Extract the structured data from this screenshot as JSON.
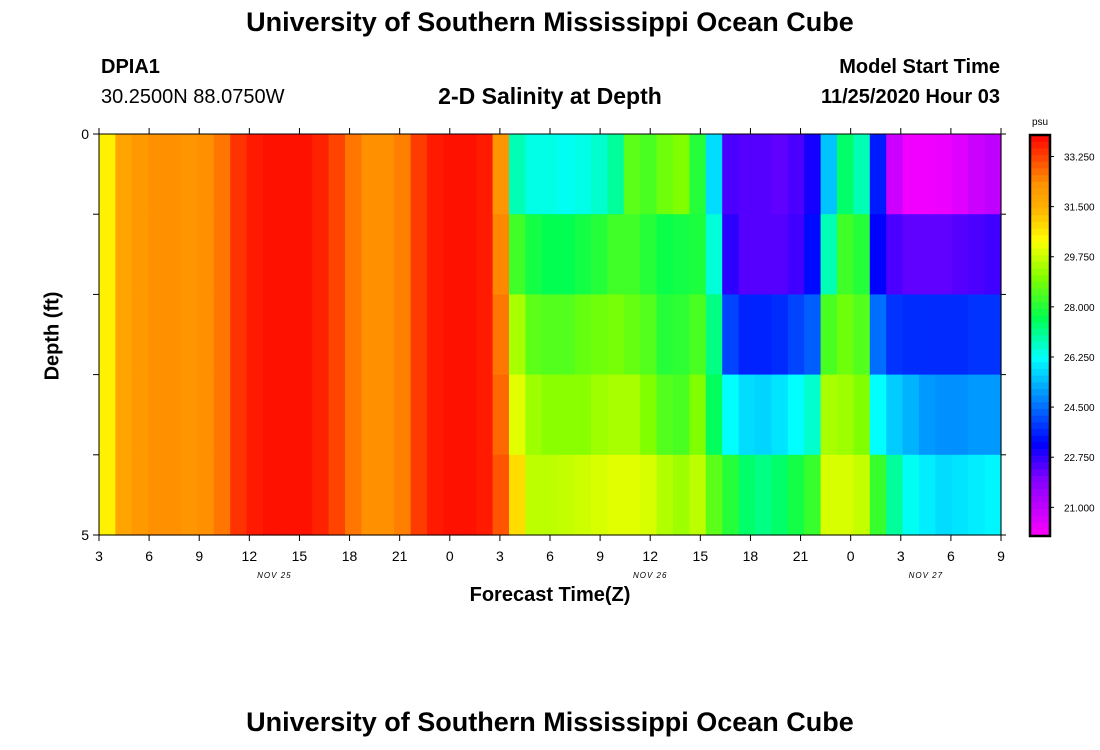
{
  "header": {
    "title": "University of Southern Mississippi Ocean Cube",
    "station_id": "DPIA1",
    "station_coords": "30.2500N 88.0750W",
    "subtitle": "2-D Salinity at Depth",
    "model_start_label": "Model Start Time",
    "model_start_value": "11/25/2020 Hour 03"
  },
  "footer": {
    "title": "University of Southern Mississippi Ocean Cube"
  },
  "chart_data": {
    "type": "heatmap",
    "title": "2-D Salinity at Depth",
    "xlabel": "Forecast Time(Z)",
    "ylabel": "Depth (ft)",
    "x_hours_range": [
      0,
      54
    ],
    "xticks": [
      {
        "h": 0,
        "label": "3"
      },
      {
        "h": 3,
        "label": "6"
      },
      {
        "h": 6,
        "label": "9"
      },
      {
        "h": 9,
        "label": "12"
      },
      {
        "h": 12,
        "label": "15"
      },
      {
        "h": 15,
        "label": "18"
      },
      {
        "h": 18,
        "label": "21"
      },
      {
        "h": 21,
        "label": "0"
      },
      {
        "h": 24,
        "label": "3"
      },
      {
        "h": 27,
        "label": "6"
      },
      {
        "h": 30,
        "label": "9"
      },
      {
        "h": 33,
        "label": "12"
      },
      {
        "h": 36,
        "label": "15"
      },
      {
        "h": 39,
        "label": "18"
      },
      {
        "h": 42,
        "label": "21"
      },
      {
        "h": 45,
        "label": "0"
      },
      {
        "h": 48,
        "label": "3"
      },
      {
        "h": 51,
        "label": "6"
      },
      {
        "h": 54,
        "label": "9"
      }
    ],
    "date_labels": [
      {
        "h": 10.5,
        "label": "NOV 25"
      },
      {
        "h": 33,
        "label": "NOV 26"
      },
      {
        "h": 49.5,
        "label": "NOV 27"
      }
    ],
    "ylim": [
      0,
      5
    ],
    "yticks": [
      {
        "v": 0,
        "label": "0"
      },
      {
        "v": 1,
        "label": ""
      },
      {
        "v": 2,
        "label": ""
      },
      {
        "v": 3,
        "label": ""
      },
      {
        "v": 4,
        "label": ""
      },
      {
        "v": 5,
        "label": "5"
      }
    ],
    "colorbar": {
      "units": "psu",
      "min": 20.0,
      "max": 34.0,
      "tick_values": [
        33.25,
        31.5,
        29.75,
        28.0,
        26.25,
        24.5,
        22.75,
        21.0
      ],
      "tick_labels": [
        "33.250",
        "31.500",
        "29.750",
        "28.000",
        "26.250",
        "24.500",
        "22.750",
        "21.000"
      ]
    },
    "depth_layers": 5,
    "salinity_by_hour": [
      [
        30.5,
        30.5,
        30.5,
        30.5,
        30.5
      ],
      [
        31.8,
        31.8,
        31.8,
        31.8,
        31.8
      ],
      [
        32.1,
        32.1,
        32.1,
        32.1,
        32.1
      ],
      [
        32.3,
        32.3,
        32.3,
        32.3,
        32.3
      ],
      [
        32.3,
        32.3,
        32.3,
        32.3,
        32.3
      ],
      [
        32.2,
        32.2,
        32.2,
        32.2,
        32.2
      ],
      [
        32.3,
        32.3,
        32.3,
        32.3,
        32.3
      ],
      [
        32.6,
        32.6,
        32.6,
        32.6,
        32.6
      ],
      [
        33.4,
        33.4,
        33.4,
        33.4,
        33.4
      ],
      [
        33.7,
        33.7,
        33.7,
        33.7,
        33.7
      ],
      [
        33.8,
        33.8,
        33.8,
        33.8,
        33.8
      ],
      [
        33.8,
        33.8,
        33.8,
        33.8,
        33.8
      ],
      [
        33.8,
        33.8,
        33.8,
        33.8,
        33.8
      ],
      [
        33.6,
        33.6,
        33.6,
        33.6,
        33.6
      ],
      [
        33.2,
        33.2,
        33.2,
        33.2,
        33.2
      ],
      [
        32.6,
        32.6,
        32.6,
        32.6,
        32.6
      ],
      [
        32.3,
        32.3,
        32.3,
        32.3,
        32.3
      ],
      [
        32.3,
        32.3,
        32.3,
        32.3,
        32.3
      ],
      [
        32.5,
        32.5,
        32.5,
        32.5,
        32.5
      ],
      [
        33.3,
        33.3,
        33.3,
        33.3,
        33.3
      ],
      [
        33.7,
        33.7,
        33.7,
        33.7,
        33.7
      ],
      [
        33.8,
        33.8,
        33.8,
        33.8,
        33.8
      ],
      [
        33.8,
        33.8,
        33.8,
        33.8,
        33.8
      ],
      [
        33.7,
        33.7,
        33.7,
        33.7,
        33.7
      ],
      [
        32.2,
        32.4,
        32.6,
        32.8,
        33.0
      ],
      [
        26.8,
        28.3,
        29.4,
        30.0,
        30.8
      ],
      [
        26.4,
        27.8,
        28.6,
        29.3,
        29.6
      ],
      [
        26.4,
        27.6,
        28.5,
        29.1,
        29.6
      ],
      [
        26.3,
        27.6,
        28.5,
        29.1,
        29.7
      ],
      [
        26.4,
        27.8,
        28.7,
        29.1,
        29.8
      ],
      [
        26.6,
        28.0,
        28.8,
        29.3,
        29.9
      ],
      [
        27.0,
        28.3,
        28.9,
        29.4,
        30.0
      ],
      [
        28.6,
        28.3,
        28.7,
        29.4,
        30.0
      ],
      [
        28.4,
        28.0,
        28.5,
        29.0,
        29.9
      ],
      [
        28.8,
        27.7,
        28.0,
        28.5,
        29.5
      ],
      [
        29.0,
        27.8,
        28.1,
        28.4,
        29.3
      ],
      [
        28.0,
        27.9,
        28.4,
        29.0,
        29.6
      ],
      [
        25.8,
        26.5,
        27.2,
        27.5,
        28.6
      ],
      [
        22.5,
        22.8,
        24.0,
        26.2,
        28.0
      ],
      [
        22.4,
        22.4,
        23.6,
        25.8,
        27.4
      ],
      [
        22.4,
        22.4,
        23.6,
        25.7,
        27.2
      ],
      [
        22.3,
        22.4,
        23.7,
        25.9,
        27.4
      ],
      [
        22.5,
        22.6,
        24.0,
        26.2,
        27.8
      ],
      [
        23.0,
        23.3,
        24.3,
        26.6,
        28.2
      ],
      [
        25.5,
        26.8,
        28.4,
        29.4,
        29.9
      ],
      [
        27.4,
        28.3,
        28.8,
        29.3,
        29.9
      ],
      [
        26.8,
        28.0,
        28.5,
        29.0,
        29.7
      ],
      [
        23.5,
        23.2,
        24.5,
        26.2,
        28.2
      ],
      [
        20.8,
        22.5,
        23.8,
        25.6,
        27.0
      ],
      [
        20.2,
        22.3,
        23.7,
        25.3,
        26.3
      ],
      [
        20.2,
        22.3,
        23.7,
        25.0,
        26.0
      ],
      [
        20.3,
        22.3,
        23.7,
        24.9,
        25.8
      ],
      [
        20.5,
        22.4,
        23.7,
        24.9,
        25.9
      ],
      [
        20.8,
        22.5,
        23.8,
        25.0,
        26.0
      ],
      [
        21.0,
        22.6,
        23.8,
        25.0,
        26.1
      ]
    ]
  }
}
